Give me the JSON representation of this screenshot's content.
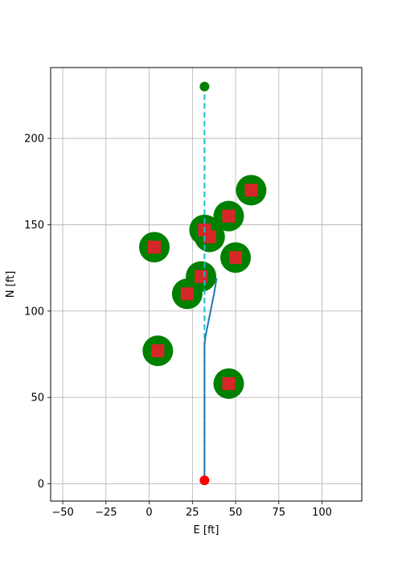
{
  "chart_data": {
    "type": "scatter",
    "xlabel": "E [ft]",
    "ylabel": "N [ft]",
    "xlim": [
      -57,
      123
    ],
    "ylim": [
      -10,
      241
    ],
    "x_ticks": [
      -50,
      -25,
      0,
      25,
      50,
      75,
      100
    ],
    "y_ticks": [
      0,
      50,
      100,
      150,
      200
    ],
    "x_tick_labels": [
      "−50",
      "−25",
      "0",
      "25",
      "50",
      "75",
      "100"
    ],
    "y_tick_labels": [
      "0",
      "50",
      "100",
      "150",
      "200"
    ],
    "grid": true,
    "start": {
      "x": 32,
      "y": 2
    },
    "goal": {
      "x": 32,
      "y": 230
    },
    "obstacles": [
      {
        "x": 5,
        "y": 77
      },
      {
        "x": 46,
        "y": 58
      },
      {
        "x": 22,
        "y": 110
      },
      {
        "x": 30,
        "y": 120
      },
      {
        "x": 3,
        "y": 137
      },
      {
        "x": 35,
        "y": 143
      },
      {
        "x": 32,
        "y": 147
      },
      {
        "x": 50,
        "y": 131
      },
      {
        "x": 46,
        "y": 155
      },
      {
        "x": 59,
        "y": 170
      }
    ],
    "planned_path": {
      "x": [
        32,
        32
      ],
      "y": [
        2,
        230
      ]
    },
    "actual_path": {
      "x": [
        32,
        32,
        32,
        32,
        32,
        32.5,
        33.5,
        35.5,
        37.5,
        39
      ],
      "y": [
        2,
        30,
        60,
        75,
        80,
        85,
        90,
        100,
        110,
        119
      ]
    },
    "colors": {
      "obstacle_circle": "#008000",
      "obstacle_square": "#d62728",
      "start": "#ff0000",
      "goal": "#008000",
      "planned_path": "#17becf",
      "actual_path": "#1f77b4",
      "grid": "#b0b0b0"
    }
  }
}
